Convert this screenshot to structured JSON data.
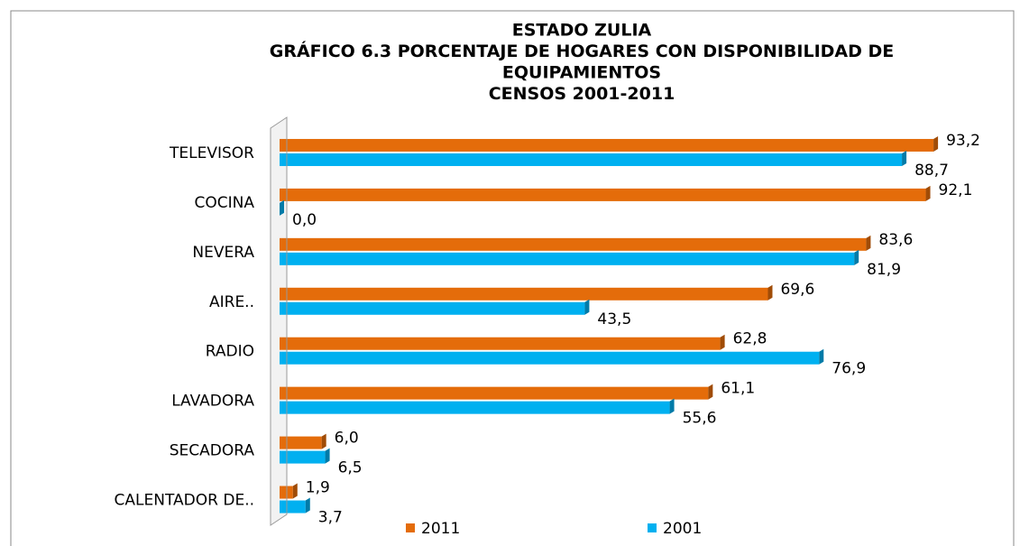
{
  "chart_data": {
    "type": "bar",
    "orientation": "horizontal",
    "title": [
      "ESTADO ZULIA",
      "GRÁFICO 6.3 PORCENTAJE DE HOGARES CON DISPONIBILIDAD  DE",
      "EQUIPAMIENTOS",
      "CENSOS 2001-2011"
    ],
    "categories": [
      "TELEVISOR",
      "COCINA",
      "NEVERA",
      "AIRE..",
      "RADIO",
      "LAVADORA",
      "SECADORA",
      "CALENTADOR DE.."
    ],
    "series": [
      {
        "name": "2011",
        "color": "#e46c0a",
        "values": [
          93.2,
          92.1,
          83.6,
          69.6,
          62.8,
          61.1,
          6.0,
          1.9
        ],
        "value_labels": [
          "93,2",
          "92,1",
          "83,6",
          "69,6",
          "62,8",
          "61,1",
          "6,0",
          "1,9"
        ]
      },
      {
        "name": "2001",
        "color": "#00b0f0",
        "values": [
          88.7,
          0.0,
          81.9,
          43.5,
          76.9,
          55.6,
          6.5,
          3.7
        ],
        "value_labels": [
          "88,7",
          "0,0",
          "81,9",
          "43,5",
          "76,9",
          "55,6",
          "6,5",
          "3,7"
        ]
      }
    ],
    "xlim": [
      0,
      100
    ],
    "legend": "bottom"
  }
}
